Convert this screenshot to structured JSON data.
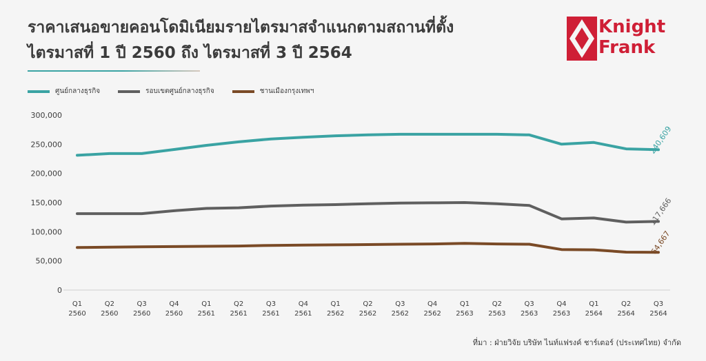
{
  "header": {
    "title_line1": "ราคาเสนอขายคอนโดมิเนียมรายไตรมาสจำแนกตามสถานที่ตั้ง",
    "title_line2": "ไตรมาสที่ 1 ปี 2560 ถึง ไตรมาสที่ 3 ปี 2564"
  },
  "brand": {
    "line1": "Knight",
    "line2": "Frank",
    "color": "#cf1f36"
  },
  "source": "ที่มา : ฝ่ายวิจัย บริษัท ไนท์แฟรงค์ ชาร์เตอร์ (ประเทศไทย) จำกัด",
  "chart_data": {
    "type": "line",
    "title": "ราคาเสนอขายคอนโดมิเนียมรายไตรมาสจำแนกตามสถานที่ตั้ง ไตรมาสที่ 1 ปี 2560 ถึง ไตรมาสที่ 3 ปี 2564",
    "categories": [
      [
        "Q1",
        "2560"
      ],
      [
        "Q2",
        "2560"
      ],
      [
        "Q3",
        "2560"
      ],
      [
        "Q4",
        "2560"
      ],
      [
        "Q1",
        "2561"
      ],
      [
        "Q2",
        "2561"
      ],
      [
        "Q3",
        "2561"
      ],
      [
        "Q4",
        "2561"
      ],
      [
        "Q1",
        "2562"
      ],
      [
        "Q2",
        "2562"
      ],
      [
        "Q3",
        "2562"
      ],
      [
        "Q4",
        "2562"
      ],
      [
        "Q1",
        "2563"
      ],
      [
        "Q2",
        "2563"
      ],
      [
        "Q3",
        "2563"
      ],
      [
        "Q4",
        "2563"
      ],
      [
        "Q1",
        "2564"
      ],
      [
        "Q2",
        "2564"
      ],
      [
        "Q3",
        "2564"
      ]
    ],
    "ylim": [
      0,
      300000
    ],
    "yticks": [
      0,
      50000,
      100000,
      150000,
      200000,
      250000,
      300000
    ],
    "ytick_labels": [
      "0",
      "50,000",
      "100,000",
      "150,000",
      "200,000",
      "250,000",
      "300,000"
    ],
    "grid": false,
    "legend_position": "top-left",
    "series": [
      {
        "name": "ศูนย์กลางธุรกิจ",
        "color": "#3aa3a3",
        "values": [
          231000,
          234000,
          234000,
          241000,
          248000,
          254000,
          259000,
          262000,
          264500,
          266000,
          267000,
          267000,
          267000,
          267000,
          266000,
          250000,
          253000,
          242000,
          240609
        ],
        "end_label": "240,609"
      },
      {
        "name": "รอบเขตศูนย์กลางธุรกิจ",
        "color": "#5f5f5f",
        "values": [
          131000,
          131000,
          131000,
          136000,
          140000,
          141000,
          144000,
          145500,
          146500,
          148000,
          149000,
          149500,
          150000,
          148000,
          145000,
          122000,
          123500,
          116500,
          117666
        ],
        "end_label": "117,666"
      },
      {
        "name": "ชานเมืองกรุงเทพฯ",
        "color": "#7a4a26",
        "values": [
          73000,
          73500,
          74000,
          74500,
          75000,
          75500,
          76500,
          77000,
          77500,
          78000,
          78500,
          79000,
          80000,
          79000,
          78500,
          69500,
          69000,
          65000,
          64667
        ],
        "end_label": "64,667"
      }
    ]
  }
}
